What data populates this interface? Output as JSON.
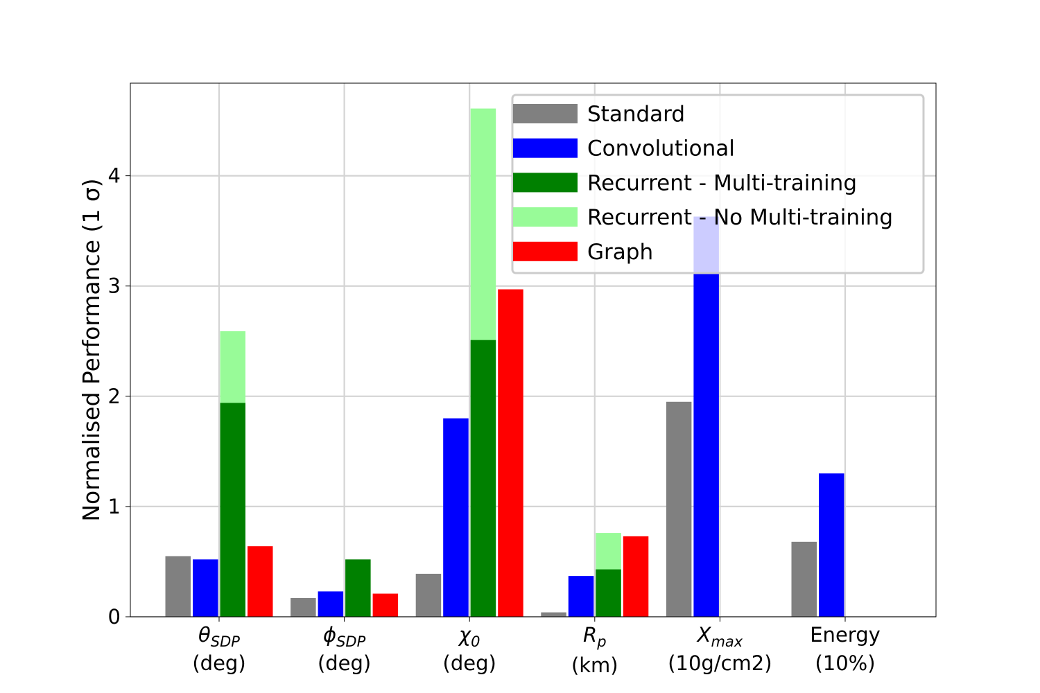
{
  "chart_data": {
    "type": "bar",
    "ylabel": "Normalised Performance (1 σ)",
    "ylim": [
      0,
      4.84
    ],
    "yticks": [
      "0",
      "1",
      "2",
      "3",
      "4"
    ],
    "grid": true,
    "legend_position": "top-right",
    "categories": [
      {
        "symbol": "θ",
        "sub": "SDP",
        "unit": "(deg)"
      },
      {
        "symbol": "ϕ",
        "sub": "SDP",
        "unit": "(deg)"
      },
      {
        "symbol": "χ",
        "sub": "0",
        "unit": "(deg)"
      },
      {
        "symbol": "R",
        "sub": "p",
        "unit": "(km)"
      },
      {
        "symbol": "X",
        "sub": "max",
        "unit": "(10g/cm2)"
      },
      {
        "symbol": "Energy",
        "sub": "",
        "unit": "(10%)"
      }
    ],
    "series": [
      {
        "name": "Standard",
        "color": "#808080",
        "values": [
          0.55,
          0.17,
          0.39,
          0.04,
          1.95,
          0.68
        ]
      },
      {
        "name": "Convolutional",
        "color": "#0000ff",
        "values": [
          0.52,
          0.23,
          1.8,
          0.37,
          3.63,
          1.3
        ]
      },
      {
        "name": "Recurrent - Multi-training",
        "color": "#008000",
        "values": [
          1.94,
          0.52,
          2.51,
          0.43,
          null,
          null
        ]
      },
      {
        "name": "Recurrent - No Multi-training",
        "color": "#98fb98",
        "values": [
          2.59,
          null,
          4.61,
          0.76,
          null,
          null
        ]
      },
      {
        "name": "Graph",
        "color": "#ff0000",
        "values": [
          0.64,
          0.21,
          2.97,
          0.73,
          null,
          null
        ]
      }
    ]
  }
}
